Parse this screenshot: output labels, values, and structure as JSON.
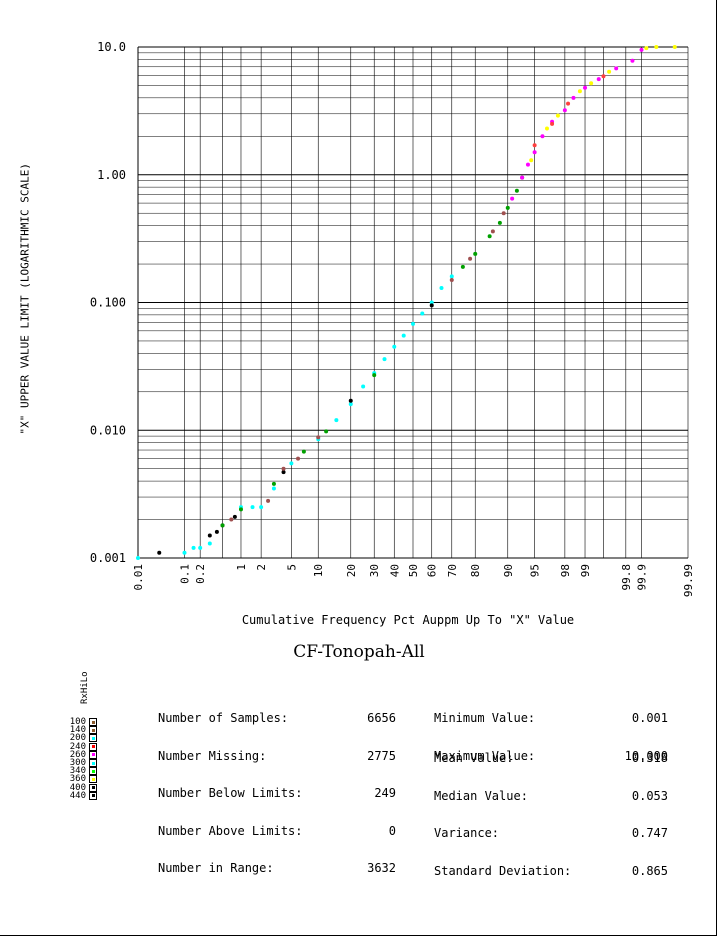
{
  "chart_data": {
    "type": "scatter",
    "title": "CF-Tonopah-All",
    "xlabel": "Cumulative Frequency Pct Auppm Up To \"X\" Value",
    "ylabel": "\"X\" UPPER VALUE LIMIT (LOGARITHMIC SCALE)",
    "x_scale": "probability",
    "y_scale": "log",
    "xlim": [
      0.01,
      99.99
    ],
    "ylim": [
      0.001,
      10.0
    ],
    "grid": true,
    "y_ticks": [
      "0.001",
      "0.010",
      "0.100",
      "1.00",
      "10.0"
    ],
    "x_ticks": [
      "0.01",
      "0.1",
      "0.2",
      "1",
      "2",
      "5",
      "10",
      "20",
      "30",
      "40",
      "50",
      "60",
      "70",
      "80",
      "90",
      "95",
      "98",
      "99",
      "99.8",
      "99.9",
      "99.99"
    ],
    "series": [
      {
        "color": "#00ffff",
        "points": [
          [
            0.01,
            0.001
          ],
          [
            0.1,
            0.0011
          ],
          [
            0.15,
            0.0012
          ],
          [
            0.2,
            0.0012
          ],
          [
            0.3,
            0.0013
          ],
          [
            1,
            0.0025
          ],
          [
            1.5,
            0.0025
          ],
          [
            2,
            0.0025
          ],
          [
            3,
            0.0035
          ],
          [
            5,
            0.0055
          ],
          [
            10,
            0.0085
          ],
          [
            15,
            0.012
          ],
          [
            20,
            0.016
          ],
          [
            25,
            0.022
          ],
          [
            30,
            0.028
          ],
          [
            35,
            0.036
          ],
          [
            40,
            0.045
          ],
          [
            45,
            0.055
          ],
          [
            50,
            0.068
          ],
          [
            55,
            0.082
          ],
          [
            60,
            0.1
          ],
          [
            65,
            0.13
          ],
          [
            70,
            0.16
          ]
        ]
      },
      {
        "color": "#000000",
        "points": [
          [
            0.03,
            0.0011
          ],
          [
            0.3,
            0.0015
          ],
          [
            0.4,
            0.0016
          ],
          [
            0.5,
            0.0018
          ],
          [
            0.8,
            0.0021
          ],
          [
            4,
            0.0047
          ],
          [
            20,
            0.017
          ],
          [
            60,
            0.095
          ]
        ]
      },
      {
        "color": "#00a000",
        "points": [
          [
            0.5,
            0.0018
          ],
          [
            1,
            0.0024
          ],
          [
            3,
            0.0038
          ],
          [
            7,
            0.0068
          ],
          [
            12,
            0.0098
          ],
          [
            30,
            0.027
          ],
          [
            75,
            0.19
          ],
          [
            80,
            0.24
          ],
          [
            85,
            0.33
          ],
          [
            88,
            0.42
          ],
          [
            90,
            0.55
          ],
          [
            92,
            0.75
          ],
          [
            93,
            0.95
          ]
        ]
      },
      {
        "color": "#a05050",
        "points": [
          [
            0.7,
            0.002
          ],
          [
            2.5,
            0.0028
          ],
          [
            4,
            0.005
          ],
          [
            6,
            0.006
          ],
          [
            10,
            0.0088
          ],
          [
            70,
            0.15
          ],
          [
            78,
            0.22
          ],
          [
            86,
            0.36
          ],
          [
            89,
            0.5
          ]
        ]
      },
      {
        "color": "#ff00ff",
        "points": [
          [
            91,
            0.65
          ],
          [
            93,
            0.95
          ],
          [
            94,
            1.2
          ],
          [
            95,
            1.5
          ],
          [
            96,
            2.0
          ],
          [
            97,
            2.6
          ],
          [
            98,
            3.2
          ],
          [
            98.5,
            4.0
          ],
          [
            99,
            4.8
          ],
          [
            99.4,
            5.6
          ],
          [
            99.7,
            6.8
          ],
          [
            99.85,
            7.8
          ],
          [
            99.9,
            9.5
          ]
        ]
      },
      {
        "color": "#ffff00",
        "points": [
          [
            94.5,
            1.3
          ],
          [
            96.5,
            2.3
          ],
          [
            97.5,
            2.9
          ],
          [
            98.8,
            4.5
          ],
          [
            99.2,
            5.2
          ],
          [
            99.6,
            6.4
          ],
          [
            99.92,
            9.8
          ],
          [
            99.95,
            10.0
          ],
          [
            99.98,
            10.0
          ]
        ]
      },
      {
        "color": "#ff4040",
        "points": [
          [
            95,
            1.7
          ],
          [
            97,
            2.5
          ],
          [
            98.2,
            3.6
          ],
          [
            99.5,
            5.9
          ]
        ]
      }
    ],
    "legend": {
      "title": "RxHiLo",
      "entries": [
        {
          "label": "100",
          "color": "#8b5a2b"
        },
        {
          "label": "140",
          "color": "#8b5a2b"
        },
        {
          "label": "200",
          "color": "#00ffff"
        },
        {
          "label": "240",
          "color": "#ff0000"
        },
        {
          "label": "260",
          "color": "#ff00ff"
        },
        {
          "label": "300",
          "color": "#00ffff"
        },
        {
          "label": "340",
          "color": "#00ff00"
        },
        {
          "label": "360",
          "color": "#ffff00"
        },
        {
          "label": "400",
          "color": "#000000"
        },
        {
          "label": "440",
          "color": "#000000"
        }
      ]
    }
  },
  "stats": {
    "left_labels": [
      "Number of Samples:",
      "Number Missing:",
      "Number Below Limits:",
      "Number Above Limits:",
      "Number in Range:"
    ],
    "left_values": [
      "6656",
      "2775",
      "249",
      "0",
      "3632"
    ],
    "right_labels_1": [
      "Minimum Value:",
      "Maximum Value:"
    ],
    "right_values_1": [
      "0.001",
      "10.000"
    ],
    "right_labels_2": [
      "Mean Value:",
      "Median Value:",
      "Variance:",
      "Standard Deviation:"
    ],
    "right_values_2": [
      "0.318",
      "0.053",
      "0.747",
      "0.865"
    ]
  }
}
